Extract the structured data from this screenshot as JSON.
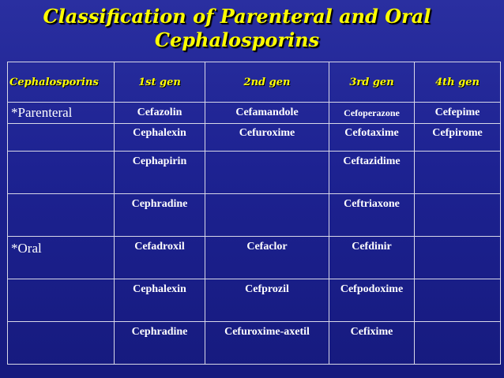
{
  "slide": {
    "title_line1": "Classification of Parenteral and Oral",
    "title_line2": "Cephalosporins"
  },
  "table": {
    "headers": [
      "Cephalosporins",
      "1st gen",
      "2nd gen",
      "3rd gen",
      "4th gen"
    ],
    "rows": [
      [
        "*Parenteral",
        "Cefazolin",
        "Cefamandole",
        "Cefoperazone",
        "Cefepime"
      ],
      [
        "",
        "Cephalexin",
        "Cefuroxime",
        "Cefotaxime",
        "Cefpirome"
      ],
      [
        "",
        "Cephapirin",
        "",
        "Ceftazidime",
        ""
      ],
      [
        "",
        "Cephradine",
        "",
        "Ceftriaxone",
        ""
      ],
      [
        "*Oral",
        "Cefadroxil",
        "Cefaclor",
        "Cefdinir",
        ""
      ],
      [
        "",
        "Cephalexin",
        "Cefprozil",
        "Cefpodoxime",
        ""
      ],
      [
        "",
        "Cephradine",
        "Cefuroxime-axetil",
        "Cefixime",
        ""
      ]
    ]
  }
}
